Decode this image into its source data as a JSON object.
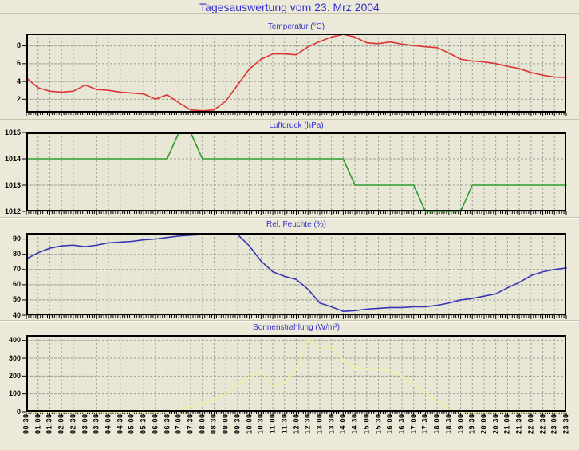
{
  "page": {
    "title": "Tagesauswertung vom 23. Mrz 2004",
    "title_color": "#3333CC",
    "background": "#ECE9D8"
  },
  "style": {
    "plot_background": "#E8E7D6",
    "grid_color": "#9C9C94",
    "axis_color": "#000000"
  },
  "x_axis": {
    "categories": [
      "00:30",
      "01:00",
      "01:30",
      "02:00",
      "02:30",
      "03:00",
      "03:30",
      "04:00",
      "04:30",
      "05:00",
      "05:30",
      "06:00",
      "06:30",
      "07:00",
      "07:30",
      "08:00",
      "08:30",
      "09:00",
      "09:30",
      "10:00",
      "10:30",
      "11:00",
      "11:30",
      "12:00",
      "12:30",
      "13:00",
      "13:30",
      "14:00",
      "14:30",
      "15:00",
      "15:30",
      "16:00",
      "16:30",
      "17:00",
      "17:30",
      "18:00",
      "18:30",
      "19:00",
      "19:30",
      "20:00",
      "20:30",
      "21:00",
      "21:30",
      "22:00",
      "22:30",
      "23:00",
      "23:30"
    ]
  },
  "chart_data": [
    {
      "type": "line",
      "title": "Temperatur (°C)",
      "color": "#DC3434",
      "ylim": [
        0.5,
        9.4
      ],
      "yticks": [
        2,
        4,
        6,
        8
      ],
      "grid": true,
      "legend": "none",
      "values": [
        4.4,
        3.3,
        2.9,
        2.8,
        2.9,
        3.6,
        3.1,
        3.0,
        2.8,
        2.7,
        2.6,
        2.0,
        2.5,
        1.6,
        0.8,
        0.7,
        0.8,
        1.8,
        3.6,
        5.4,
        6.5,
        7.1,
        7.1,
        7.0,
        7.9,
        8.5,
        9.0,
        9.3,
        9.0,
        8.35,
        8.25,
        8.45,
        8.2,
        8.05,
        7.9,
        7.8,
        7.2,
        6.5,
        6.3,
        6.2,
        6.0,
        5.7,
        5.45,
        5.0,
        4.7,
        4.5,
        4.45
      ]
    },
    {
      "type": "line",
      "title": "Luftdruck (hPa)",
      "color": "#2E9B2E",
      "ylim": [
        1012,
        1015
      ],
      "yticks": [
        1012,
        1013,
        1014,
        1015
      ],
      "grid": true,
      "legend": "none",
      "values": [
        1014,
        1014,
        1014,
        1014,
        1014,
        1014,
        1014,
        1014,
        1014,
        1014,
        1014,
        1014,
        1014,
        1015,
        1015,
        1014,
        1014,
        1014,
        1014,
        1014,
        1014,
        1014,
        1014,
        1014,
        1014,
        1014,
        1014,
        1014,
        1013,
        1013,
        1013,
        1013,
        1013,
        1013,
        1012,
        1012,
        1012,
        1012,
        1013,
        1013,
        1013,
        1013,
        1013,
        1013,
        1013,
        1013,
        1013
      ]
    },
    {
      "type": "line",
      "title": "Rel. Feuchte (%)",
      "color": "#3535B5",
      "ylim": [
        40,
        94
      ],
      "yticks": [
        40,
        50,
        60,
        70,
        80,
        90
      ],
      "grid": true,
      "legend": "none",
      "values": [
        77,
        81,
        84,
        85.5,
        86,
        85,
        86,
        87.5,
        88,
        88.5,
        89.5,
        90,
        91,
        92,
        92.5,
        93,
        93.5,
        93.5,
        93,
        85.5,
        75.5,
        68.5,
        65.5,
        63.5,
        57,
        48,
        45.5,
        42.5,
        43,
        44,
        44.5,
        45,
        45,
        45.5,
        45.5,
        46.5,
        48,
        50,
        51,
        52.5,
        54,
        58,
        61.5,
        66,
        68.5,
        70,
        71
      ]
    },
    {
      "type": "line",
      "title": "Sonnenstrahlung (W/m²)",
      "color": "#EFEF9C",
      "ylim": [
        0,
        430
      ],
      "yticks": [
        0,
        100,
        200,
        300,
        400
      ],
      "grid": true,
      "legend": "none",
      "values": [
        0,
        0,
        0,
        0,
        0,
        0,
        0,
        0,
        0,
        0,
        0,
        0,
        0,
        15,
        28,
        45,
        68,
        100,
        155,
        190,
        225,
        145,
        160,
        240,
        410,
        350,
        365,
        290,
        245,
        243,
        238,
        230,
        200,
        155,
        110,
        55,
        15,
        0,
        0,
        0,
        0,
        0,
        0,
        0,
        0,
        0,
        0
      ]
    }
  ]
}
